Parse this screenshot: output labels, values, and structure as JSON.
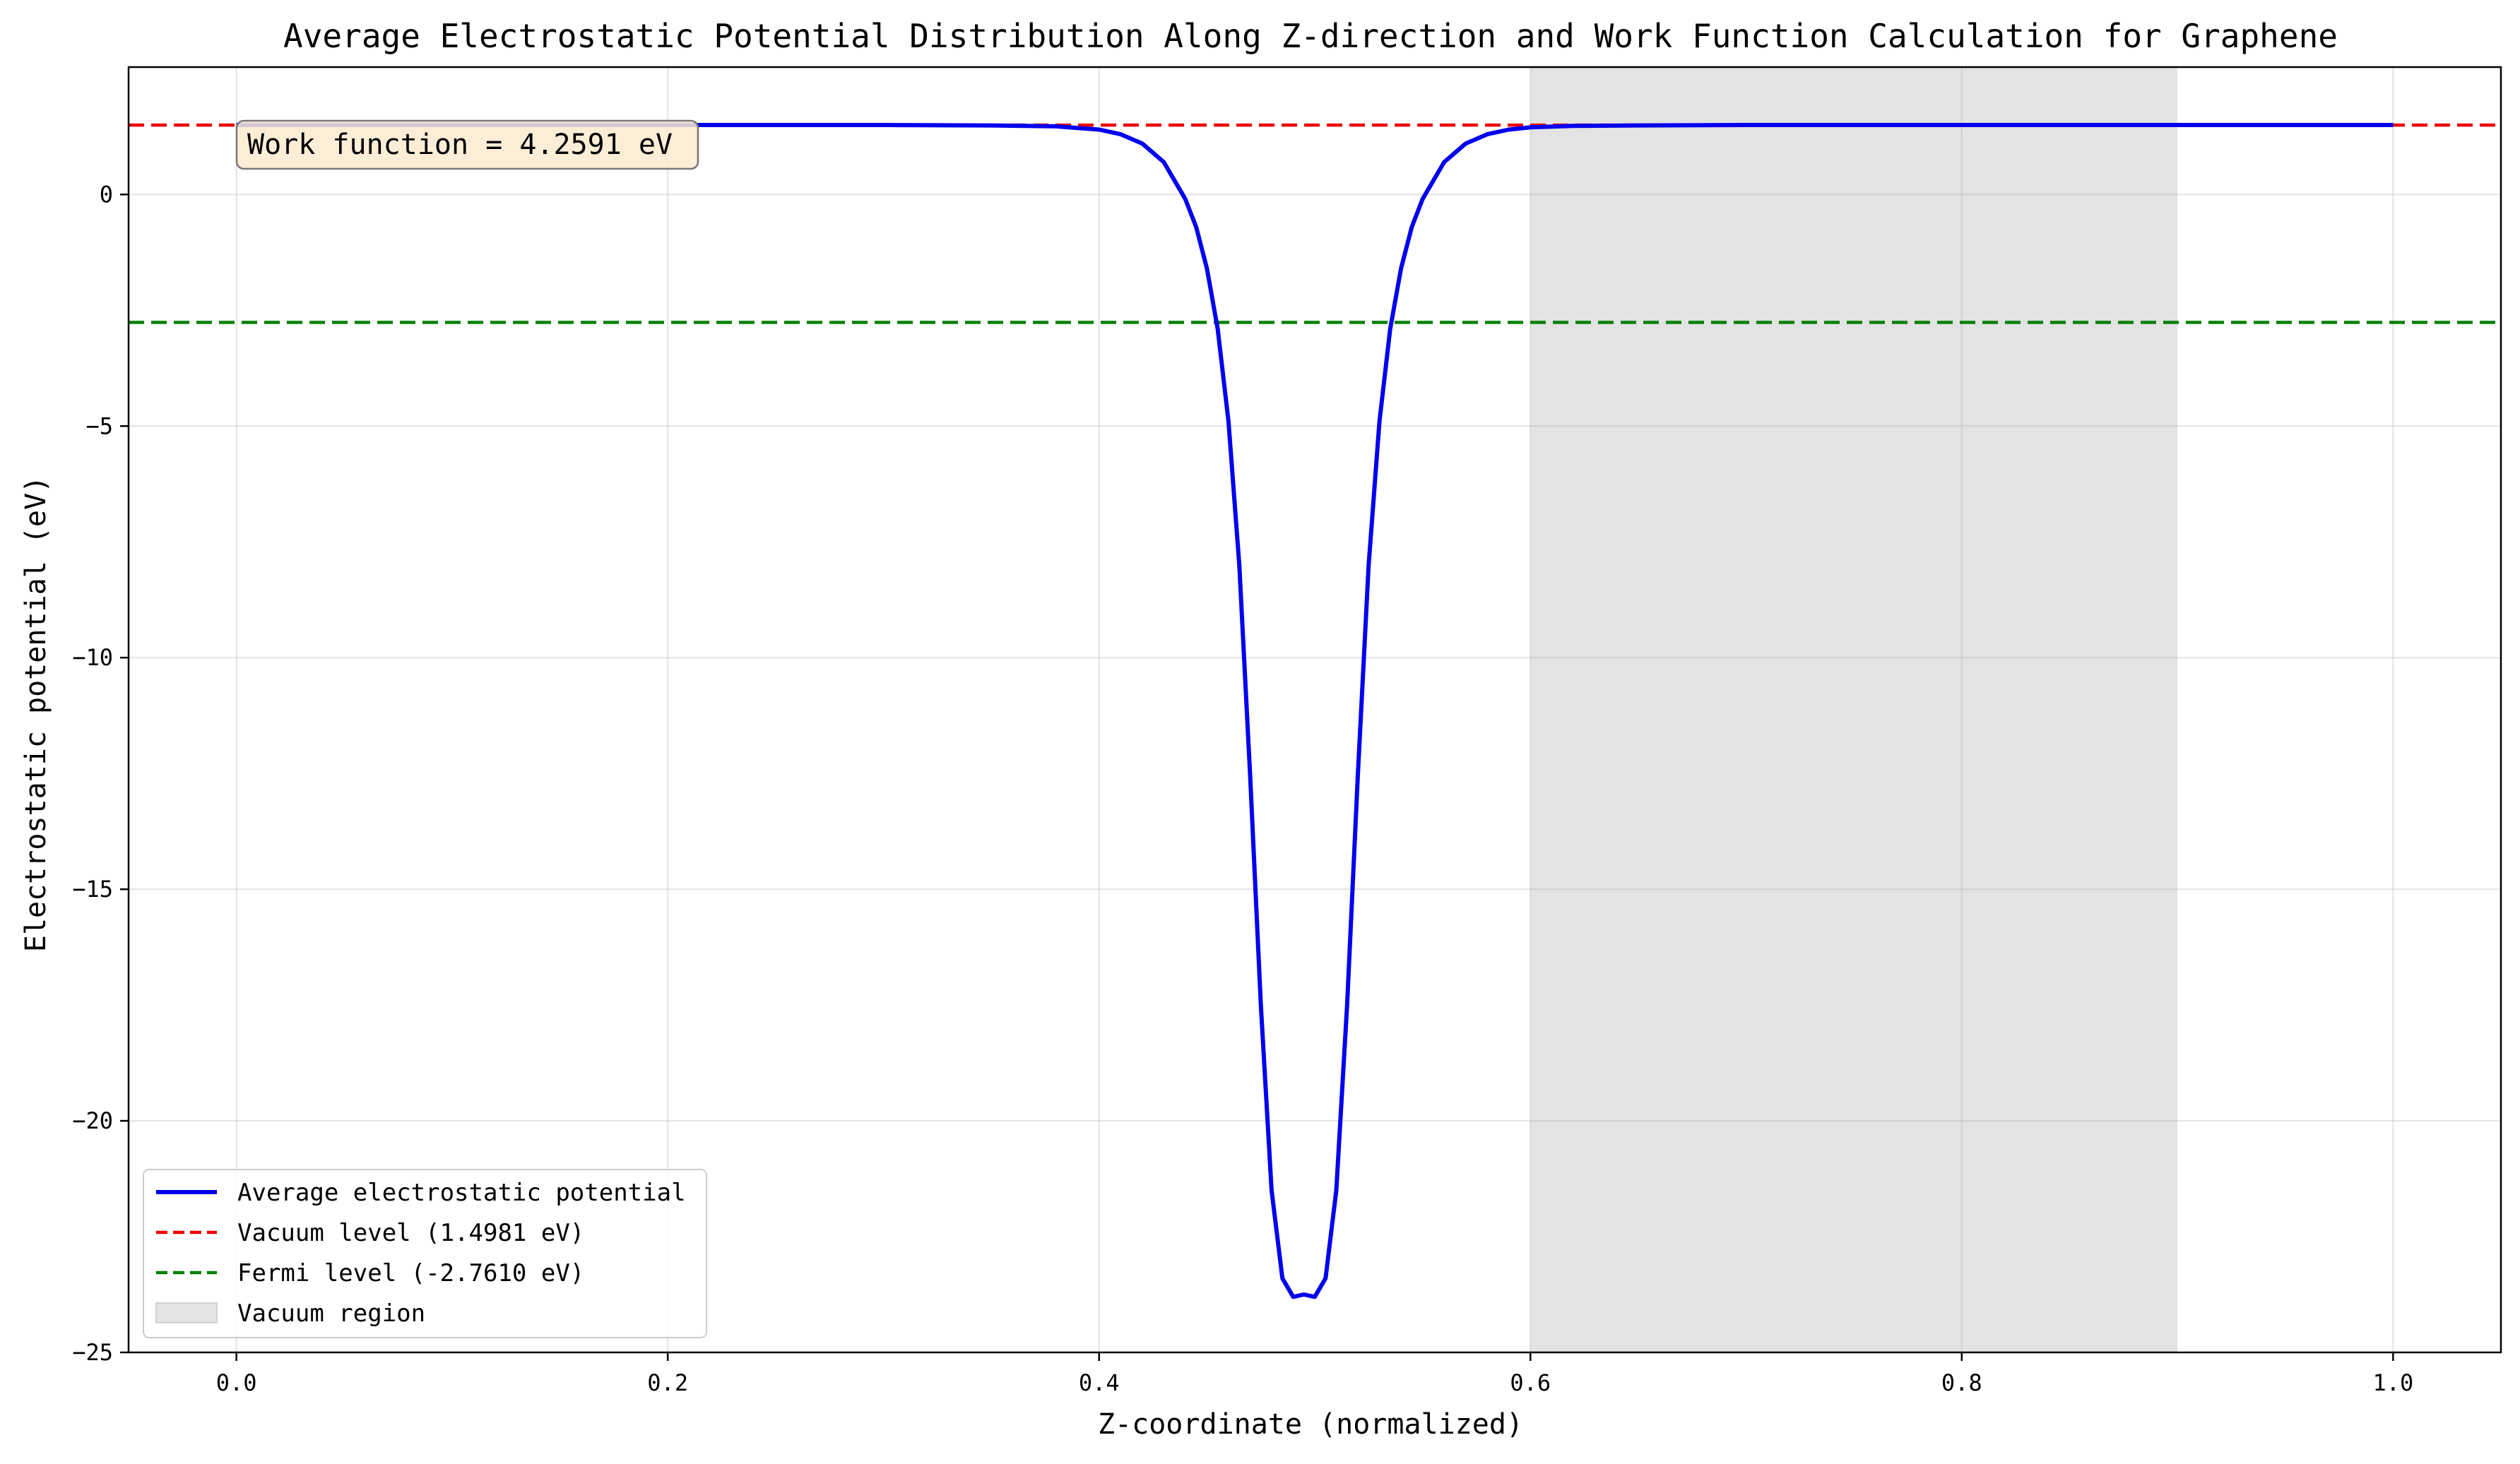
{
  "chart_data": {
    "type": "line",
    "title": "Average Electrostatic Potential Distribution Along Z-direction and Work Function Calculation for Graphene",
    "xlabel": "Z-coordinate (normalized)",
    "ylabel": "Electrostatic potential (eV)",
    "xlim": [
      -0.05,
      1.05
    ],
    "ylim": [
      -25.0,
      2.75
    ],
    "xticks": [
      0.0,
      0.2,
      0.4,
      0.6,
      0.8,
      1.0
    ],
    "xtick_labels": [
      "0.0",
      "0.2",
      "0.4",
      "0.6",
      "0.8",
      "1.0"
    ],
    "yticks": [
      0,
      -5,
      -10,
      -15,
      -20,
      -25
    ],
    "ytick_labels": [
      "0",
      "−5",
      "−10",
      "−15",
      "−20",
      "−25"
    ],
    "grid": true,
    "legend_position": "lower-left",
    "series": [
      {
        "name": "Average electrostatic potential",
        "color": "#0000ee",
        "style": "solid",
        "x": [
          0.0,
          0.05,
          0.1,
          0.15,
          0.2,
          0.25,
          0.3,
          0.35,
          0.38,
          0.4,
          0.41,
          0.42,
          0.43,
          0.44,
          0.445,
          0.45,
          0.455,
          0.46,
          0.465,
          0.47,
          0.475,
          0.48,
          0.485,
          0.49,
          0.495,
          0.5,
          0.505,
          0.51,
          0.515,
          0.52,
          0.525,
          0.53,
          0.535,
          0.54,
          0.545,
          0.55,
          0.555,
          0.56,
          0.57,
          0.58,
          0.59,
          0.6,
          0.62,
          0.65,
          0.7,
          0.8,
          0.9,
          1.0
        ],
        "y": [
          1.5,
          1.5,
          1.5,
          1.5,
          1.5,
          1.5,
          1.5,
          1.49,
          1.47,
          1.4,
          1.3,
          1.1,
          0.7,
          -0.1,
          -0.7,
          -1.6,
          -2.9,
          -4.9,
          -8.0,
          -12.5,
          -17.5,
          -21.5,
          -23.4,
          -23.8,
          -23.75,
          -23.8,
          -23.4,
          -21.5,
          -17.5,
          -12.5,
          -8.0,
          -4.9,
          -2.9,
          -1.6,
          -0.7,
          -0.1,
          0.3,
          0.7,
          1.1,
          1.3,
          1.4,
          1.45,
          1.48,
          1.49,
          1.5,
          1.5,
          1.5,
          1.5
        ]
      },
      {
        "name": "Vacuum level (1.4981 eV)",
        "color": "#ee0000",
        "style": "dashed",
        "y_const": 1.4981
      },
      {
        "name": "Fermi level (-2.7610 eV)",
        "color": "#008000",
        "style": "dashed",
        "y_const": -2.761
      }
    ],
    "shaded_region": {
      "name": "Vacuum region",
      "x_range": [
        0.6,
        0.9
      ],
      "color": "#e3e3e3"
    },
    "annotation": {
      "text": "Work function = 4.2591 eV",
      "box_color": "#fcebcf"
    }
  }
}
